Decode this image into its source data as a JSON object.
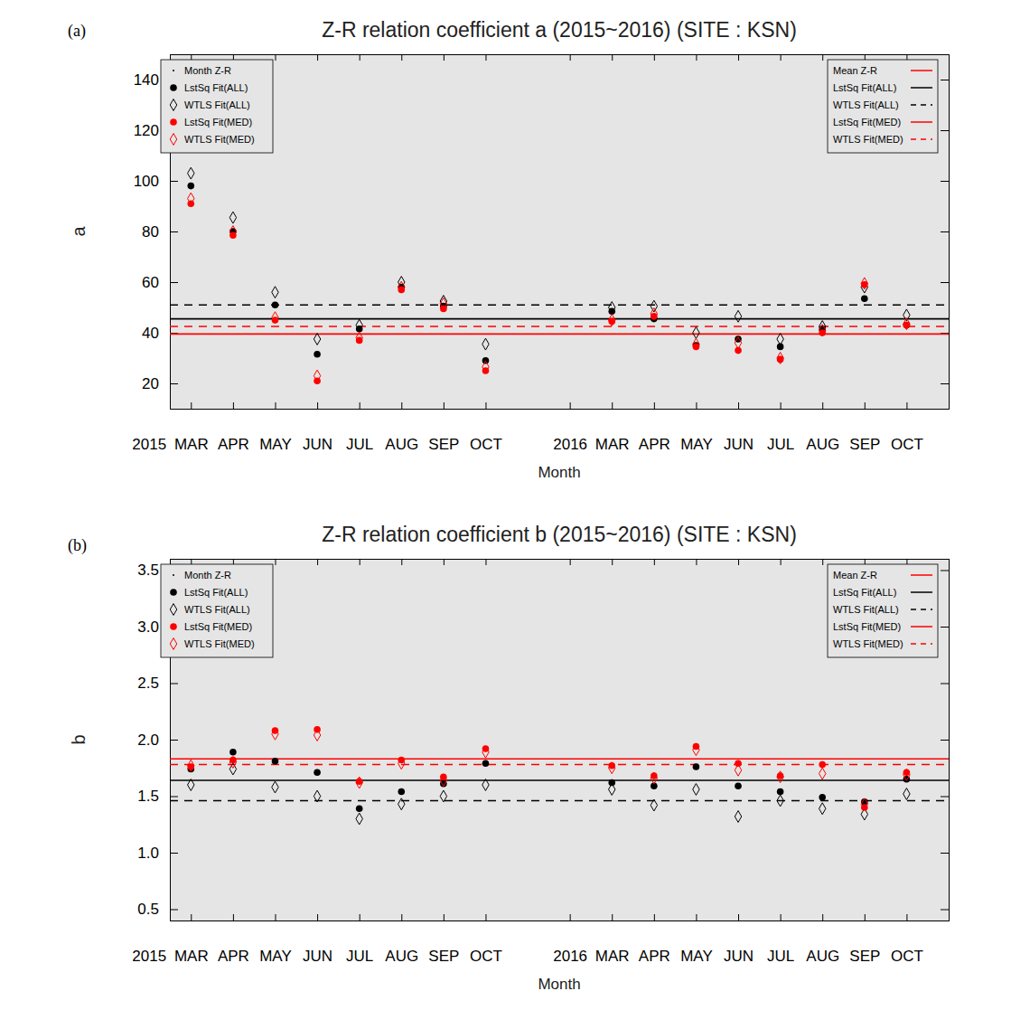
{
  "chart_data": [
    {
      "type": "scatter",
      "panel_label": "(a)",
      "title": "Z-R relation coefficient a (2015~2016) (SITE : KSN)",
      "x_label": "Month",
      "y_label": "a",
      "categories": [
        "2015",
        "MAR",
        "APR",
        "MAY",
        "JUN",
        "JUL",
        "AUG",
        "SEP",
        "OCT",
        null,
        "2016",
        "MAR",
        "APR",
        "MAY",
        "JUN",
        "JUL",
        "AUG",
        "SEP",
        "OCT"
      ],
      "xlim": [
        0.5,
        19
      ],
      "ylim": [
        10,
        150
      ],
      "yticks": [
        20,
        40,
        60,
        80,
        100,
        120,
        140
      ],
      "legend": "upper left",
      "series": [
        {
          "name": "Month Z-R",
          "color": "#000000",
          "marker": "dot",
          "values": [
            null,
            null,
            null,
            null,
            null,
            null,
            null,
            null,
            null,
            null,
            null,
            null,
            null,
            null,
            null,
            null,
            null,
            null,
            null
          ]
        },
        {
          "name": "LstSq Fit(ALL)",
          "color": "#000000",
          "marker": "circle",
          "values": [
            null,
            98,
            80,
            51,
            31.5,
            41.5,
            58,
            50.5,
            29,
            null,
            null,
            48.5,
            45.5,
            35,
            37.5,
            34.5,
            41.5,
            53.5,
            43
          ]
        },
        {
          "name": "WTLS Fit(ALL)",
          "color": "#000000",
          "marker": "diamond-open",
          "values": [
            null,
            103,
            85.5,
            56,
            37.5,
            43,
            60,
            52.5,
            35.5,
            null,
            null,
            50,
            50.5,
            40,
            46.5,
            37.5,
            42.5,
            58,
            47
          ]
        },
        {
          "name": "LstSq Fit(MED)",
          "color": "#ff0000",
          "marker": "circle",
          "values": [
            null,
            91,
            78.5,
            45,
            21,
            37,
            57,
            49.5,
            25,
            null,
            null,
            44.5,
            46.5,
            34.5,
            33,
            29.5,
            40,
            59,
            43
          ]
        },
        {
          "name": "WTLS Fit(MED)",
          "color": "#ff0000",
          "marker": "diamond-open",
          "values": [
            null,
            93,
            80,
            46,
            23,
            38,
            58,
            51.5,
            26.5,
            null,
            null,
            45,
            47.5,
            35.5,
            36,
            30,
            41,
            59.5,
            43.5
          ]
        }
      ],
      "reference_lines": [
        {
          "name": "Mean Z-R",
          "color": "#ff0000",
          "line_style": "solid",
          "value": null
        },
        {
          "name": "LstSq Fit(ALL)",
          "color": "#000000",
          "line_style": "solid",
          "value": 45.5
        },
        {
          "name": "WTLS Fit(ALL)",
          "color": "#000000",
          "line_style": "dashed",
          "value": 51
        },
        {
          "name": "LstSq Fit(MED)",
          "color": "#ff0000",
          "line_style": "solid",
          "value": 39.5
        },
        {
          "name": "WTLS Fit(MED)",
          "color": "#ff0000",
          "line_style": "dashed",
          "value": 42.5
        }
      ]
    },
    {
      "type": "scatter",
      "panel_label": "(b)",
      "title": "Z-R relation coefficient b (2015~2016) (SITE : KSN)",
      "x_label": "Month",
      "y_label": "b",
      "categories": [
        "2015",
        "MAR",
        "APR",
        "MAY",
        "JUN",
        "JUL",
        "AUG",
        "SEP",
        "OCT",
        null,
        "2016",
        "MAR",
        "APR",
        "MAY",
        "JUN",
        "JUL",
        "AUG",
        "SEP",
        "OCT"
      ],
      "xlim": [
        0.5,
        19
      ],
      "ylim": [
        0.4,
        3.6
      ],
      "yticks": [
        {
          "value": 0.5,
          "label": "0.5"
        },
        {
          "value": 1,
          "label": "1.0"
        },
        {
          "value": 1.5,
          "label": "1.5"
        },
        {
          "value": 2,
          "label": "2.0"
        },
        {
          "value": 2.5,
          "label": "2.5"
        },
        {
          "value": 3,
          "label": "3.0"
        },
        {
          "value": 3.5,
          "label": "3.5"
        }
      ],
      "legend": "upper left",
      "series": [
        {
          "name": "Month Z-R",
          "color": "#000000",
          "marker": "dot",
          "values": [
            null,
            null,
            null,
            null,
            null,
            null,
            null,
            null,
            null,
            null,
            null,
            null,
            null,
            null,
            null,
            null,
            null,
            null,
            null
          ]
        },
        {
          "name": "LstSq Fit(ALL)",
          "color": "#000000",
          "marker": "circle",
          "values": [
            null,
            1.74,
            1.89,
            1.81,
            1.71,
            1.39,
            1.54,
            1.61,
            1.79,
            null,
            null,
            1.62,
            1.59,
            1.76,
            1.59,
            1.54,
            1.49,
            1.45,
            1.65
          ]
        },
        {
          "name": "WTLS Fit(ALL)",
          "color": "#000000",
          "marker": "diamond-open",
          "values": [
            null,
            1.6,
            1.74,
            1.58,
            1.5,
            1.3,
            1.43,
            1.5,
            1.6,
            null,
            null,
            1.56,
            1.42,
            1.56,
            1.32,
            1.46,
            1.39,
            1.34,
            1.52
          ]
        },
        {
          "name": "LstSq Fit(MED)",
          "color": "#ff0000",
          "marker": "circle",
          "values": [
            null,
            1.76,
            1.82,
            2.08,
            2.09,
            1.63,
            1.82,
            1.67,
            1.92,
            null,
            null,
            1.77,
            1.68,
            1.94,
            1.79,
            1.68,
            1.78,
            1.4,
            1.71
          ]
        },
        {
          "name": "WTLS Fit(MED)",
          "color": "#ff0000",
          "marker": "diamond-open",
          "values": [
            null,
            1.77,
            1.8,
            2.05,
            2.04,
            1.62,
            1.79,
            1.64,
            1.89,
            null,
            null,
            1.75,
            1.66,
            1.91,
            1.73,
            1.67,
            1.7,
            1.43,
            1.69
          ]
        }
      ],
      "reference_lines": [
        {
          "name": "Mean Z-R",
          "color": "#ff0000",
          "line_style": "solid",
          "value": null
        },
        {
          "name": "LstSq Fit(ALL)",
          "color": "#000000",
          "line_style": "solid",
          "value": 1.64
        },
        {
          "name": "WTLS Fit(ALL)",
          "color": "#000000",
          "line_style": "dashed",
          "value": 1.46
        },
        {
          "name": "LstSq Fit(MED)",
          "color": "#ff0000",
          "line_style": "solid",
          "value": 1.83
        },
        {
          "name": "WTLS Fit(MED)",
          "color": "#ff0000",
          "line_style": "dashed",
          "value": 1.78
        }
      ]
    }
  ]
}
